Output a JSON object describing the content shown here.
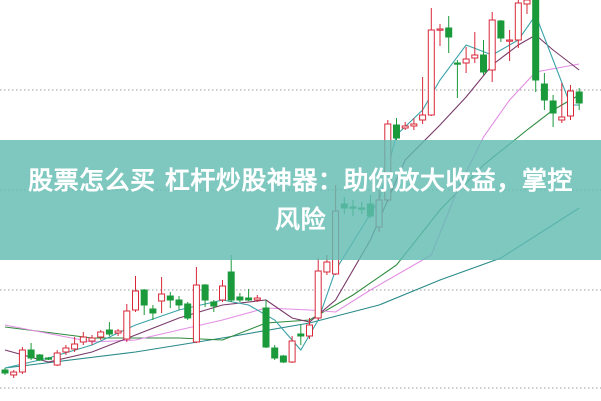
{
  "banner": {
    "title": "股票怎么买 杠杆炒股神器：助你放大收益，掌控风险"
  },
  "chart_data": {
    "type": "candlestick",
    "grid": "horizontal dotted",
    "ylim": [
      0,
      40
    ],
    "colors": {
      "up": "#d8283a",
      "down": "#1a9a3a",
      "ma_short": "#3aa3a8",
      "ma_mid": "#7a3a6a",
      "ma_pink": "#e48ee4",
      "ma_green": "#2f8a3e",
      "ma_long": "#2a8a8a"
    },
    "candles": [
      [
        3.0,
        2.7,
        3.2,
        2.5
      ],
      [
        2.5,
        2.8,
        3.0,
        2.2
      ],
      [
        2.8,
        5.0,
        5.3,
        2.6
      ],
      [
        5.0,
        4.2,
        5.7,
        4.0
      ],
      [
        4.5,
        4.0,
        4.6,
        3.9
      ],
      [
        4.2,
        4.1,
        4.3,
        4.0
      ],
      [
        3.5,
        4.7,
        5.0,
        3.4
      ],
      [
        4.8,
        5.2,
        5.5,
        4.5
      ],
      [
        5.1,
        5.6,
        6.3,
        4.8
      ],
      [
        5.8,
        6.3,
        6.8,
        5.5
      ],
      [
        5.9,
        6.2,
        6.5,
        5.5
      ],
      [
        6.3,
        6.8,
        7.0,
        6.0
      ],
      [
        7.0,
        6.6,
        7.8,
        6.4
      ],
      [
        6.7,
        6.9,
        7.1,
        6.4
      ],
      [
        6.1,
        8.9,
        9.6,
        5.8
      ],
      [
        9.0,
        10.9,
        12.4,
        8.8
      ],
      [
        11.0,
        9.5,
        11.1,
        8.5
      ],
      [
        9.1,
        8.7,
        9.5,
        8.0
      ],
      [
        9.9,
        10.6,
        12.3,
        8.7
      ],
      [
        10.4,
        10.0,
        10.8,
        9.2
      ],
      [
        10.0,
        9.5,
        10.4,
        9.0
      ],
      [
        9.6,
        8.2,
        9.8,
        8.0
      ],
      [
        5.8,
        11.5,
        13.3,
        5.7
      ],
      [
        11.5,
        10.0,
        11.6,
        9.3
      ],
      [
        9.8,
        9.4,
        10.0,
        8.8
      ],
      [
        10.0,
        11.4,
        12.0,
        9.8
      ],
      [
        12.8,
        10.0,
        14.5,
        9.8
      ],
      [
        10.3,
        10.0,
        10.7,
        9.8
      ],
      [
        10.2,
        10.0,
        11.1,
        9.9
      ],
      [
        10.0,
        10.2,
        10.5,
        9.8
      ],
      [
        9.2,
        5.3,
        10.0,
        5.2
      ],
      [
        5.2,
        4.2,
        5.5,
        4.0
      ],
      [
        4.4,
        3.8,
        4.5,
        3.7
      ],
      [
        3.8,
        5.9,
        6.4,
        3.7
      ],
      [
        6.6,
        6.4,
        7.5,
        5.5
      ],
      [
        6.4,
        7.5,
        8.2,
        6.1
      ],
      [
        8.2,
        12.9,
        14.2,
        8.0
      ],
      [
        12.8,
        13.8,
        14.5,
        12.5
      ],
      [
        12.6,
        18.9,
        21.5,
        12.5
      ],
      [
        19.6,
        19.2,
        20.3,
        18.6
      ],
      [
        19.3,
        19.2,
        20.0,
        18.4
      ],
      [
        19.2,
        19.1,
        19.8,
        18.6
      ],
      [
        19.6,
        18.4,
        20.5,
        18.2
      ],
      [
        17.3,
        20.0,
        21.0,
        16.8
      ],
      [
        20.0,
        27.6,
        28.0,
        19.8
      ],
      [
        27.5,
        26.2,
        28.2,
        26.0
      ],
      [
        27.2,
        27.4,
        27.8,
        27.0
      ],
      [
        27.4,
        27.6,
        28.2,
        27.0
      ],
      [
        28.0,
        28.5,
        32.3,
        27.6
      ],
      [
        28.5,
        37.0,
        39.2,
        28.4
      ],
      [
        37.0,
        37.1,
        37.6,
        35.4
      ],
      [
        37.2,
        36.3,
        38.4,
        34.7
      ],
      [
        33.7,
        33.6,
        34.0,
        30.2
      ],
      [
        33.7,
        34.1,
        35.3,
        32.7
      ],
      [
        34.2,
        34.5,
        36.8,
        33.7
      ],
      [
        34.5,
        32.8,
        36.0,
        32.5
      ],
      [
        33.0,
        38.0,
        38.8,
        31.8
      ],
      [
        37.9,
        36.2,
        38.0,
        35.8
      ],
      [
        36.0,
        36.0,
        37.0,
        33.9
      ],
      [
        36.0,
        39.7,
        40.0,
        35.2
      ],
      [
        39.6,
        40.0,
        40.0,
        38.6
      ],
      [
        40.0,
        32.0,
        40.0,
        30.8
      ],
      [
        31.6,
        30.0,
        32.7,
        29.0
      ],
      [
        29.9,
        28.7,
        30.5,
        27.3
      ],
      [
        28.0,
        28.3,
        31.7,
        27.7
      ],
      [
        28.4,
        30.9,
        31.5,
        28.0
      ],
      [
        30.8,
        29.7,
        31.2,
        29.0
      ]
    ],
    "candle_fields": [
      "open",
      "close",
      "high",
      "low"
    ],
    "lines": [
      {
        "color_key": "ma_long",
        "points": [
          [
            0,
            3.2
          ],
          [
            15,
            4.8
          ],
          [
            25,
            6.2
          ],
          [
            35,
            7.7
          ],
          [
            43,
            9.5
          ],
          [
            50,
            12.0
          ],
          [
            57,
            14.2
          ],
          [
            66,
            19.2
          ]
        ]
      },
      {
        "color_key": "ma_green",
        "points": [
          [
            0,
            7.3
          ],
          [
            10,
            6.2
          ],
          [
            20,
            6.2
          ],
          [
            25,
            6.0
          ],
          [
            30,
            7.7
          ],
          [
            35,
            8.0
          ],
          [
            40,
            10.5
          ],
          [
            45,
            13.5
          ],
          [
            50,
            19.0
          ],
          [
            55,
            23.5
          ],
          [
            60,
            27.0
          ],
          [
            63,
            29.0
          ],
          [
            66,
            30.5
          ]
        ]
      },
      {
        "color_key": "ma_pink",
        "points": [
          [
            0,
            7.5
          ],
          [
            10,
            5.8
          ],
          [
            15,
            6.0
          ],
          [
            20,
            7.0
          ],
          [
            25,
            8.0
          ],
          [
            30,
            9.2
          ],
          [
            35,
            9.0
          ],
          [
            38,
            8.8
          ],
          [
            42,
            11.0
          ],
          [
            46,
            13.0
          ],
          [
            49,
            14.5
          ],
          [
            52,
            21.0
          ],
          [
            55,
            26.3
          ],
          [
            58,
            30.0
          ],
          [
            61,
            32.8
          ],
          [
            66,
            33.6
          ]
        ]
      },
      {
        "color_key": "ma_mid",
        "points": [
          [
            0,
            5.0
          ],
          [
            5,
            3.8
          ],
          [
            10,
            4.8
          ],
          [
            15,
            6.5
          ],
          [
            20,
            8.2
          ],
          [
            25,
            9.5
          ],
          [
            30,
            10.0
          ],
          [
            33,
            8.2
          ],
          [
            35,
            7.8
          ],
          [
            38,
            10.0
          ],
          [
            42,
            16.0
          ],
          [
            46,
            24.0
          ],
          [
            50,
            27.5
          ],
          [
            53,
            30.3
          ],
          [
            56,
            33.5
          ],
          [
            59,
            35.5
          ],
          [
            61,
            36.5
          ],
          [
            63,
            35.0
          ],
          [
            66,
            33.0
          ]
        ]
      },
      {
        "color_key": "ma_short",
        "points": [
          [
            0,
            3.2
          ],
          [
            5,
            4.2
          ],
          [
            10,
            5.5
          ],
          [
            15,
            7.5
          ],
          [
            20,
            9.0
          ],
          [
            25,
            10.0
          ],
          [
            28,
            9.5
          ],
          [
            31,
            8.0
          ],
          [
            34,
            5.0
          ],
          [
            36,
            8.0
          ],
          [
            38,
            13.0
          ],
          [
            43,
            20.0
          ],
          [
            45,
            26.5
          ],
          [
            48,
            29.0
          ],
          [
            50,
            32.0
          ],
          [
            53,
            35.5
          ],
          [
            56,
            34.5
          ],
          [
            59,
            36.0
          ],
          [
            61,
            38.5
          ],
          [
            63,
            34.0
          ],
          [
            65,
            29.5
          ],
          [
            66,
            29.5
          ]
        ]
      }
    ],
    "gridlines": [
      31,
      21,
      11,
      1.2
    ]
  }
}
